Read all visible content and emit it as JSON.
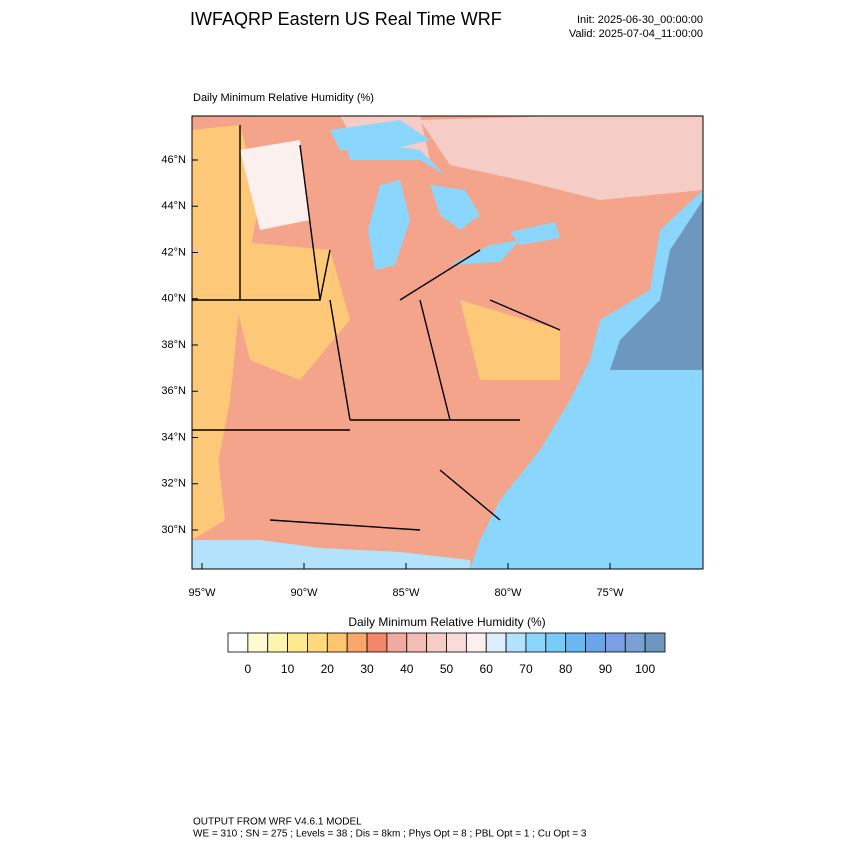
{
  "header": {
    "title": "IWFAQRP Eastern US Real Time WRF",
    "init": "Init: 2025-06-30_00:00:00",
    "valid": "Valid: 2025-07-04_11:00:00"
  },
  "map": {
    "title": "Daily Minimum Relative Humidity   (%)",
    "lat_labels": [
      "46°N",
      "44°N",
      "42°N",
      "40°N",
      "38°N",
      "36°N",
      "34°N",
      "32°N",
      "30°N"
    ],
    "lon_labels": [
      "95°W",
      "90°W",
      "85°W",
      "80°W",
      "75°W"
    ]
  },
  "colorbar": {
    "title": "Daily Minimum Relative Humidity  (%)",
    "ticks": [
      0,
      10,
      20,
      30,
      40,
      50,
      60,
      70,
      80,
      90,
      100
    ],
    "colors": [
      "#ffffff",
      "#fffbd0",
      "#fff3b0",
      "#ffe890",
      "#ffd97a",
      "#fdc56e",
      "#f9a86a",
      "#f4876a",
      "#f0aaa0",
      "#f3bcb4",
      "#f6ccc6",
      "#f9dcd8",
      "#fcf0ee",
      "#dceefc",
      "#b2e2fc",
      "#8ad6fc",
      "#78cbf9",
      "#6ab8f2",
      "#6ca4ea",
      "#7b9fe4",
      "#7ba0d6",
      "#6e97c0"
    ]
  },
  "footer": {
    "line1": "OUTPUT FROM WRF V4.6.1 MODEL",
    "line2": "WE = 310 ; SN = 275 ; Levels = 38 ; Dis = 8km ; Phys Opt = 8 ; PBL Opt = 1 ; Cu Opt = 3"
  }
}
